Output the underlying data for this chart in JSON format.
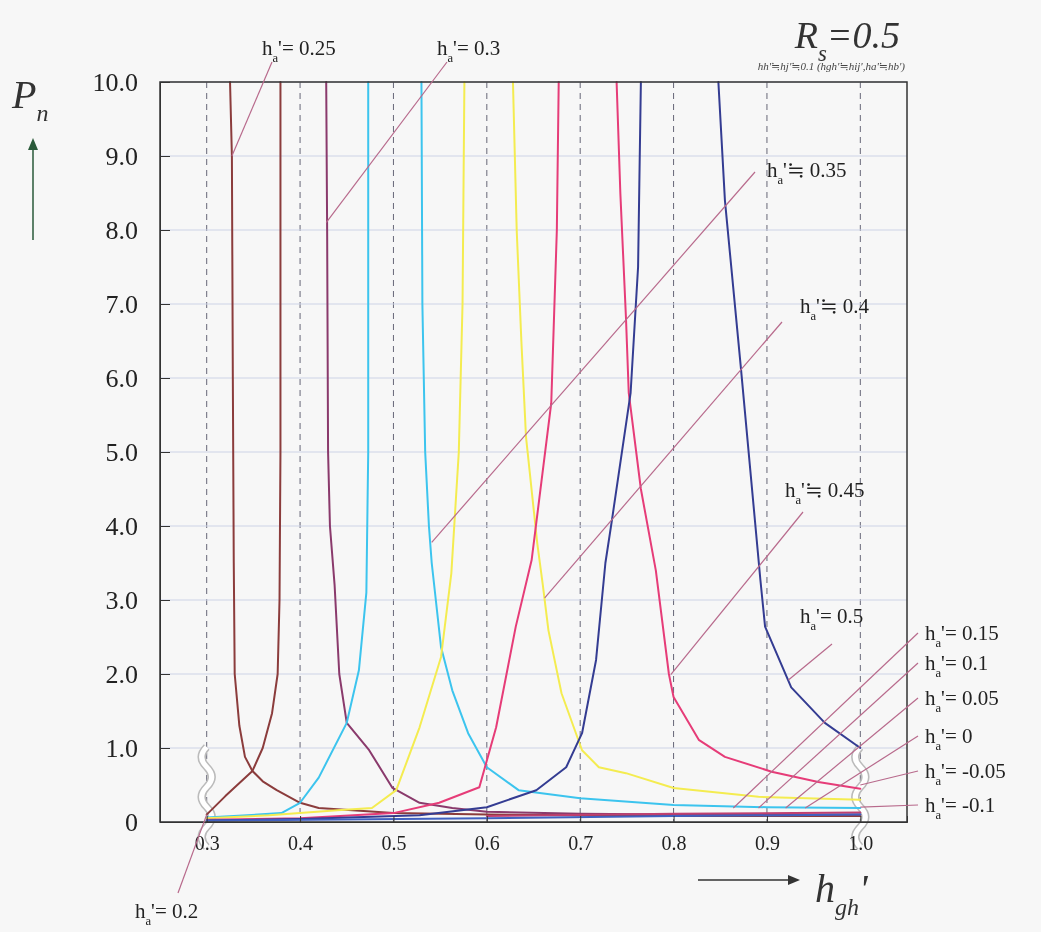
{
  "chart_data": {
    "type": "line",
    "title": "R$_{s}$=0.5",
    "subtitle": "hh'≒hj'≒0.1 (hgh'≒hij',ha'≒hb')",
    "xlabel": "h$_{gh}$'",
    "ylabel": "P$_{n}$",
    "xlim": [
      0.25,
      1.05
    ],
    "ylim": [
      0,
      10
    ],
    "xticks": [
      0.3,
      0.4,
      0.5,
      0.6,
      0.7,
      0.8,
      0.9,
      {
        "value": 1,
        "label": "1.0"
      }
    ],
    "yticks": [
      {
        "value": 0,
        "label": "0"
      },
      {
        "value": 1,
        "label": "1.0"
      },
      {
        "value": 2,
        "label": "2.0"
      },
      {
        "value": 3,
        "label": "3.0"
      },
      {
        "value": 4,
        "label": "4.0"
      },
      {
        "value": 5,
        "label": "5.0"
      },
      {
        "value": 6,
        "label": "6.0"
      },
      {
        "value": 7,
        "label": "7.0"
      },
      {
        "value": 8,
        "label": "8.0"
      },
      {
        "value": 9,
        "label": "9.0"
      },
      {
        "value": 10,
        "label": "10.0"
      }
    ],
    "grid": true,
    "series": [
      {
        "color": "#8b3c3c",
        "x": [
          0.3,
          0.32,
          0.349,
          0.36,
          0.37,
          0.376,
          0.378,
          0.379,
          0.379
        ],
        "values": [
          0.1,
          0.35,
          0.69,
          1.0,
          1.47,
          2.0,
          3,
          5,
          10
        ]
      },
      {
        "color": "#8b3c3c",
        "x": [
          0.325,
          0.327,
          0.328,
          0.329,
          0.33,
          0.335,
          0.341,
          0.349,
          0.36,
          0.375,
          0.4,
          0.42,
          0.5,
          0.6,
          0.7,
          0.8,
          0.9,
          1.0
        ],
        "values": [
          10,
          9,
          6,
          3.5,
          2.0,
          1.3,
          0.88,
          0.69,
          0.55,
          0.43,
          0.26,
          0.19,
          0.12,
          0.1,
          0.09,
          0.08,
          0.08,
          0.08
        ]
      },
      {
        "color": "#8a3a6c",
        "x": [
          0.428,
          0.429,
          0.43,
          0.432,
          0.437,
          0.442,
          0.45,
          0.474,
          0.499,
          0.528,
          0.563,
          0.6,
          0.7,
          0.8,
          0.9,
          1.0
        ],
        "values": [
          10,
          8,
          5,
          4,
          3.2,
          2.0,
          1.34,
          0.97,
          0.46,
          0.26,
          0.19,
          0.14,
          0.11,
          0.1,
          0.1,
          0.1
        ]
      },
      {
        "color": "#3cc4ee",
        "x": [
          0.3,
          0.38,
          0.4,
          0.42,
          0.45,
          0.463,
          0.471,
          0.473,
          0.473
        ],
        "values": [
          0.06,
          0.12,
          0.26,
          0.6,
          1.34,
          2.05,
          3.1,
          5,
          10
        ]
      },
      {
        "color": "#3cc4ee",
        "x": [
          0.53,
          0.531,
          0.534,
          0.538,
          0.541,
          0.551,
          0.563,
          0.58,
          0.6,
          0.634,
          0.7,
          0.8,
          0.9,
          1.0
        ],
        "values": [
          10,
          7,
          5,
          4,
          3.5,
          2.36,
          1.78,
          1.2,
          0.74,
          0.43,
          0.32,
          0.23,
          0.2,
          0.19
        ]
      },
      {
        "color": "#f4ec50",
        "x": [
          0.3,
          0.367,
          0.44,
          0.477,
          0.503,
          0.528,
          0.551,
          0.562,
          0.57,
          0.574,
          0.576
        ],
        "values": [
          0.05,
          0.09,
          0.16,
          0.19,
          0.43,
          1.28,
          2.23,
          3.36,
          5,
          7,
          10
        ]
      },
      {
        "color": "#f4ec50",
        "x": [
          0.628,
          0.632,
          0.637,
          0.642,
          0.654,
          0.66,
          0.666,
          0.68,
          0.702,
          0.72,
          0.749,
          0.8,
          0.891,
          1.0
        ],
        "values": [
          10,
          8,
          6.5,
          5.2,
          3.77,
          3.2,
          2.59,
          1.74,
          0.97,
          0.74,
          0.66,
          0.46,
          0.34,
          0.3
        ]
      },
      {
        "color": "#e63c78",
        "x": [
          0.3,
          0.4,
          0.5,
          0.549,
          0.592,
          0.61,
          0.631,
          0.648,
          0.669,
          0.675,
          0.677
        ],
        "values": [
          0.03,
          0.05,
          0.12,
          0.26,
          0.47,
          1.28,
          2.64,
          3.54,
          5.66,
          8,
          10
        ]
      },
      {
        "color": "#e63c78",
        "x": [
          0.739,
          0.743,
          0.749,
          0.752,
          0.765,
          0.781,
          0.795,
          0.8,
          0.827,
          0.855,
          0.905,
          0.955,
          1.0
        ],
        "values": [
          10,
          8.5,
          6.82,
          5.8,
          4.5,
          3.4,
          2.0,
          1.69,
          1.11,
          0.88,
          0.68,
          0.54,
          0.45
        ]
      },
      {
        "color": "#343c92",
        "x": [
          0.3,
          0.4,
          0.528,
          0.6,
          0.653,
          0.685,
          0.702,
          0.717,
          0.727,
          0.734,
          0.754,
          0.762,
          0.765
        ],
        "values": [
          0.02,
          0.04,
          0.09,
          0.2,
          0.43,
          0.74,
          1.2,
          2.19,
          3.5,
          4.08,
          5.8,
          7.5,
          10
        ]
      },
      {
        "color": "#343c92",
        "x": [
          0.848,
          0.855,
          0.872,
          0.893,
          0.898,
          0.926,
          0.962,
          1.0
        ],
        "values": [
          10,
          8.4,
          6.15,
          3.27,
          2.64,
          1.82,
          1.34,
          1.0
        ]
      },
      {
        "color": "#c04070",
        "x": [
          0.6,
          0.8,
          1.0
        ],
        "values": [
          0.08,
          0.11,
          0.13
        ]
      },
      {
        "color": "#4060c0",
        "x": [
          0.3,
          0.6,
          0.8,
          1.0
        ],
        "values": [
          0.02,
          0.05,
          0.08,
          0.1
        ]
      }
    ],
    "annotations": [
      {
        "text": "h$_{a}$'= 0.2",
        "x": 0.3,
        "y": 0.1
      },
      {
        "text": "h$_{a}$'= 0.25",
        "x": 0.327,
        "y": 9.0
      },
      {
        "text": "h$_{a}$'= 0.3",
        "x": 0.428,
        "y": 8.1
      },
      {
        "text": "h$_{a}$'≒ 0.35",
        "x": 0.541,
        "y": 3.78
      },
      {
        "text": "h$_{a}$'≒ 0.4",
        "x": 0.662,
        "y": 3.03
      },
      {
        "text": "h$_{a}$'≒ 0.45",
        "x": 0.797,
        "y": 1.99
      },
      {
        "text": "h$_{a}$'= 0.5",
        "x": 0.923,
        "y": 1.92
      },
      {
        "text": "h$_{a}$'= 0.15",
        "x": 0.864,
        "y": 0.19
      },
      {
        "text": "h$_{a}$'= 0.1",
        "x": 0.891,
        "y": 0.19
      },
      {
        "text": "h$_{a}$'= 0.05",
        "x": 0.92,
        "y": 0.19
      },
      {
        "text": "h$_{a}$'= 0",
        "x": 0.941,
        "y": 0.19
      },
      {
        "text": "h$_{a}$'= -0.05",
        "x": 1.0,
        "y": 0.5
      },
      {
        "text": "h$_{a}$'= -0.1",
        "x": 1.0,
        "y": 0.2
      }
    ]
  }
}
